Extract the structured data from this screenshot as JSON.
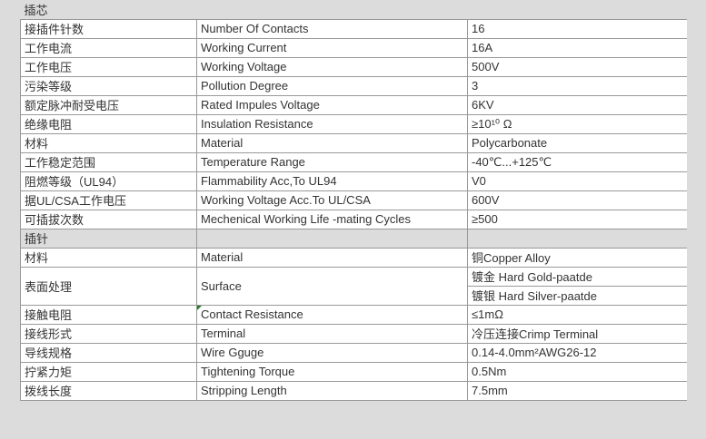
{
  "colors": {
    "background": "#dcdcdc",
    "cell_background": "#ffffff",
    "border": "#999999",
    "text": "#333333",
    "comment_marker_green": "#287828"
  },
  "sections": [
    {
      "title": "插芯",
      "rows": [
        {
          "cn": "接插件针数",
          "en": "Number Of Contacts",
          "value": "16"
        },
        {
          "cn": "工作电流",
          "en": "Working Current",
          "value": "16A"
        },
        {
          "cn": "工作电压",
          "en": "Working Voltage",
          "value": "500V"
        },
        {
          "cn": "污染等级",
          "en": "Pollution Degree",
          "value": "3"
        },
        {
          "cn": "额定脉冲耐受电压",
          "en": "Rated Impules Voltage",
          "value": "6KV"
        },
        {
          "cn": "绝缘电阻",
          "en": "Insulation Resistance",
          "value": "≥10¹⁰ Ω"
        },
        {
          "cn": "材料",
          "en": "Material",
          "value": "Polycarbonate"
        },
        {
          "cn": "工作稳定范围",
          "en": "Temperature Range",
          "value": "-40℃...+125℃"
        },
        {
          "cn": "阻燃等级（UL94）",
          "en": "Flammability Acc,To UL94",
          "value": "V0"
        },
        {
          "cn": "据UL/CSA工作电压",
          "en": "Working Voltage Acc.To UL/CSA",
          "value": "600V"
        },
        {
          "cn": "可插拔次数",
          "en": "Mechenical Working Life -mating Cycles",
          "value": "≥500"
        }
      ]
    },
    {
      "title": "插针",
      "rows": [
        {
          "cn": "材料",
          "en": "Material",
          "value": "铜Copper Alloy"
        },
        {
          "cn": "表面处理",
          "en": "Surface",
          "values": [
            "镀金 Hard Gold-paatde",
            "镀银 Hard Silver-paatde"
          ]
        },
        {
          "cn": "接触电阻",
          "en": "Contact Resistance",
          "value": "≤1mΩ",
          "comment_marker": true
        },
        {
          "cn": "接线形式",
          "en": "Terminal",
          "value": "冷压连接Crimp Terminal"
        },
        {
          "cn": "导线规格",
          "en": "Wire Gguge",
          "value": "0.14-4.0mm²AWG26-12"
        },
        {
          "cn": "拧紧力矩",
          "en": "Tightening Torque",
          "value": "0.5Nm"
        },
        {
          "cn": "拨线长度",
          "en": "Stripping Length",
          "value": "7.5mm"
        }
      ]
    }
  ]
}
